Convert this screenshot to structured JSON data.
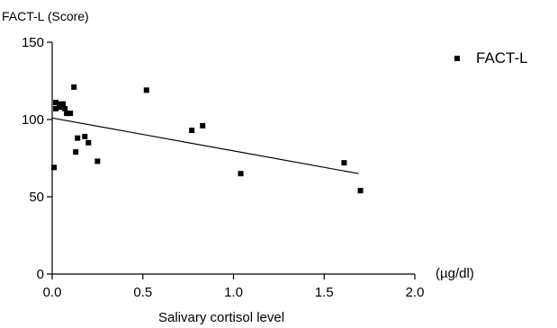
{
  "chart_data": {
    "type": "scatter",
    "ylabel": "FACT-L (Score)",
    "xlabel": "Salivary cortisol level",
    "x_unit": "(µg/dl)",
    "xlim": [
      0.0,
      2.0
    ],
    "ylim": [
      0,
      150
    ],
    "x_ticks": [
      "0.0",
      "0.5",
      "1.0",
      "1.5",
      "2.0"
    ],
    "y_ticks": [
      "0",
      "50",
      "100",
      "150"
    ],
    "legend_position": "top-right",
    "grid": false,
    "series": [
      {
        "name": "FACT-L",
        "marker": "square",
        "color": "#000000",
        "points": [
          {
            "x": 0.01,
            "y": 69
          },
          {
            "x": 0.02,
            "y": 107
          },
          {
            "x": 0.02,
            "y": 111
          },
          {
            "x": 0.04,
            "y": 108
          },
          {
            "x": 0.05,
            "y": 110
          },
          {
            "x": 0.06,
            "y": 110
          },
          {
            "x": 0.07,
            "y": 107
          },
          {
            "x": 0.08,
            "y": 104
          },
          {
            "x": 0.1,
            "y": 104
          },
          {
            "x": 0.12,
            "y": 121
          },
          {
            "x": 0.13,
            "y": 79
          },
          {
            "x": 0.14,
            "y": 88
          },
          {
            "x": 0.18,
            "y": 89
          },
          {
            "x": 0.2,
            "y": 85
          },
          {
            "x": 0.25,
            "y": 73
          },
          {
            "x": 0.52,
            "y": 119
          },
          {
            "x": 0.77,
            "y": 93
          },
          {
            "x": 0.83,
            "y": 96
          },
          {
            "x": 1.04,
            "y": 65
          },
          {
            "x": 1.61,
            "y": 72
          },
          {
            "x": 1.7,
            "y": 54
          }
        ]
      }
    ],
    "trendline": {
      "x": [
        0.0,
        1.69
      ],
      "y": [
        101,
        65
      ]
    }
  }
}
